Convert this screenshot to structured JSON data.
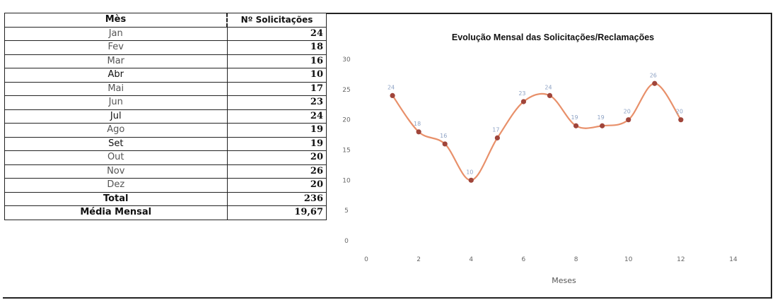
{
  "table": {
    "header_month": "Mès",
    "header_count": "Nº Solicitações",
    "rows": [
      {
        "month": "Jan",
        "value": "24"
      },
      {
        "month": "Fev",
        "value": "18"
      },
      {
        "month": "Mar",
        "value": "16"
      },
      {
        "month": "Abr",
        "value": "10"
      },
      {
        "month": "Mai",
        "value": "17"
      },
      {
        "month": "Jun",
        "value": "23"
      },
      {
        "month": "Jul",
        "value": "24"
      },
      {
        "month": "Ago",
        "value": "19"
      },
      {
        "month": "Set",
        "value": "19"
      },
      {
        "month": "Out",
        "value": "20"
      },
      {
        "month": "Nov",
        "value": "26"
      },
      {
        "month": "Dez",
        "value": "20"
      }
    ],
    "total_label": "Total",
    "total_value": "236",
    "average_label": "Média Mensal",
    "average_value": "19,67"
  },
  "chart_data": {
    "type": "scatter",
    "title": "Evolução Mensal das Solicitações/Reclamações",
    "xlabel": "Meses",
    "ylabel": "",
    "xlim": [
      0,
      14
    ],
    "ylim": [
      0,
      30
    ],
    "xticks": [
      0,
      2,
      4,
      6,
      8,
      10,
      12,
      14
    ],
    "yticks": [
      0,
      5,
      10,
      15,
      20,
      25,
      30
    ],
    "grid": false,
    "legend": "none",
    "smoothed_line": true,
    "x": [
      1,
      2,
      3,
      4,
      5,
      6,
      7,
      8,
      9,
      10,
      11,
      12
    ],
    "y": [
      24,
      18,
      16,
      10,
      17,
      23,
      24,
      19,
      19,
      20,
      26,
      20
    ],
    "colors": {
      "line": "#e8906a",
      "marker": "#a0453a",
      "data_label": "#8da2c4"
    }
  }
}
